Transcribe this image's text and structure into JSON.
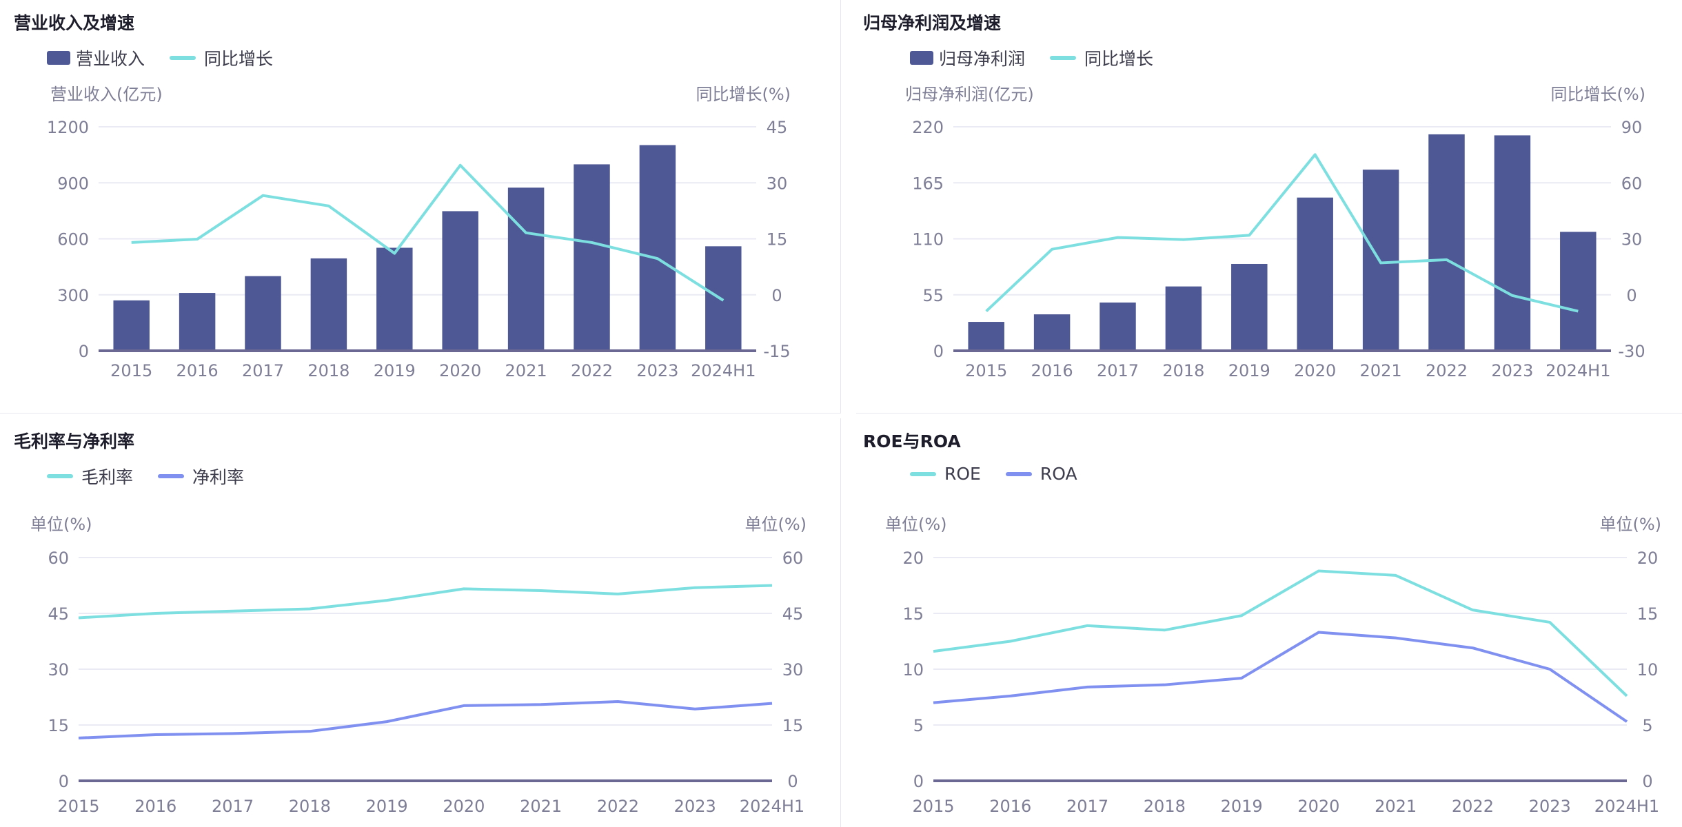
{
  "colors": {
    "bar": "#4e5894",
    "line_cyan": "#7ddfe0",
    "line_blue": "#7f90f0",
    "axis": "#6b6893",
    "grid": "#eaeaf4"
  },
  "chart_data": [
    {
      "type": "bar+line",
      "title": "营业收入及增速",
      "categories": [
        "2015",
        "2016",
        "2017",
        "2018",
        "2019",
        "2020",
        "2021",
        "2022",
        "2023",
        "2024H1"
      ],
      "left_axis": {
        "label": "营业收入(亿元)",
        "ylim": [
          0,
          1200
        ],
        "ticks": [
          "0",
          "300",
          "600",
          "900",
          "1200"
        ]
      },
      "right_axis": {
        "label": "同比增长(%)",
        "ylim": [
          -15,
          45
        ],
        "ticks": [
          "-15",
          "0",
          "15",
          "30",
          "45"
        ]
      },
      "series": [
        {
          "name": "营业收入",
          "kind": "bar",
          "axis": "left",
          "values": [
            270,
            310,
            400,
            495,
            552,
            748,
            874,
            999,
            1102,
            560
          ]
        },
        {
          "name": "同比增长",
          "kind": "line",
          "axis": "right",
          "values": [
            14.0,
            14.9,
            26.6,
            23.8,
            11.1,
            34.7,
            16.6,
            14.0,
            9.7,
            -1.5
          ]
        }
      ],
      "legend": "top-left",
      "grid": true
    },
    {
      "type": "bar+line",
      "title": "归母净利润及增速",
      "categories": [
        "2015",
        "2016",
        "2017",
        "2018",
        "2019",
        "2020",
        "2021",
        "2022",
        "2023",
        "2024H1"
      ],
      "left_axis": {
        "label": "归母净利润(亿元)",
        "ylim": [
          0,
          220
        ],
        "ticks": [
          "0",
          "55",
          "110",
          "165",
          "220"
        ]
      },
      "right_axis": {
        "label": "同比增长(%)",
        "ylim": [
          -30,
          90
        ],
        "ticks": [
          "-30",
          "0",
          "30",
          "60",
          "90"
        ]
      },
      "series": [
        {
          "name": "归母净利润",
          "kind": "bar",
          "axis": "left",
          "values": [
            28.4,
            35.8,
            47.4,
            63.2,
            85.3,
            150.5,
            177.9,
            212.6,
            211.6,
            116.8
          ]
        },
        {
          "name": "同比增长",
          "kind": "line",
          "axis": "right",
          "values": [
            -8.8,
            24.4,
            30.7,
            29.6,
            31.9,
            75.1,
            17.1,
            18.8,
            -0.4,
            -8.8
          ]
        }
      ],
      "legend": "top-left",
      "grid": true
    },
    {
      "type": "line",
      "title": "毛利率与净利率",
      "categories": [
        "2015",
        "2016",
        "2017",
        "2018",
        "2019",
        "2020",
        "2021",
        "2022",
        "2023",
        "2024H1"
      ],
      "left_axis": {
        "label": "单位(%)",
        "ylim": [
          0,
          60
        ],
        "ticks": [
          "0",
          "15",
          "30",
          "45",
          "60"
        ]
      },
      "right_axis": {
        "label": "单位(%)",
        "ylim": [
          0,
          60
        ],
        "ticks": [
          "0",
          "15",
          "30",
          "45",
          "60"
        ]
      },
      "series": [
        {
          "name": "毛利率",
          "kind": "line",
          "axis": "left",
          "values": [
            43.8,
            45.0,
            45.6,
            46.2,
            48.5,
            51.6,
            51.1,
            50.2,
            51.9,
            52.5
          ]
        },
        {
          "name": "净利率",
          "kind": "line",
          "axis": "left",
          "values": [
            11.5,
            12.4,
            12.7,
            13.3,
            15.9,
            20.2,
            20.5,
            21.3,
            19.3,
            20.8
          ]
        }
      ],
      "legend": "top-left",
      "grid": true
    },
    {
      "type": "line",
      "title": "ROE与ROA",
      "categories": [
        "2015",
        "2016",
        "2017",
        "2018",
        "2019",
        "2020",
        "2021",
        "2022",
        "2023",
        "2024H1"
      ],
      "left_axis": {
        "label": "单位(%)",
        "ylim": [
          0,
          20
        ],
        "ticks": [
          "0",
          "5",
          "10",
          "15",
          "20"
        ]
      },
      "right_axis": {
        "label": "单位(%)",
        "ylim": [
          0,
          20
        ],
        "ticks": [
          "0",
          "5",
          "10",
          "15",
          "20"
        ]
      },
      "series": [
        {
          "name": "ROE",
          "kind": "line",
          "axis": "left",
          "values": [
            11.6,
            12.5,
            13.9,
            13.5,
            14.8,
            18.8,
            18.4,
            15.3,
            14.2,
            7.6
          ]
        },
        {
          "name": "ROA",
          "kind": "line",
          "axis": "left",
          "values": [
            7.0,
            7.6,
            8.4,
            8.6,
            9.2,
            13.3,
            12.8,
            11.9,
            10.0,
            5.3
          ]
        }
      ],
      "legend": "top-left",
      "grid": true
    }
  ]
}
